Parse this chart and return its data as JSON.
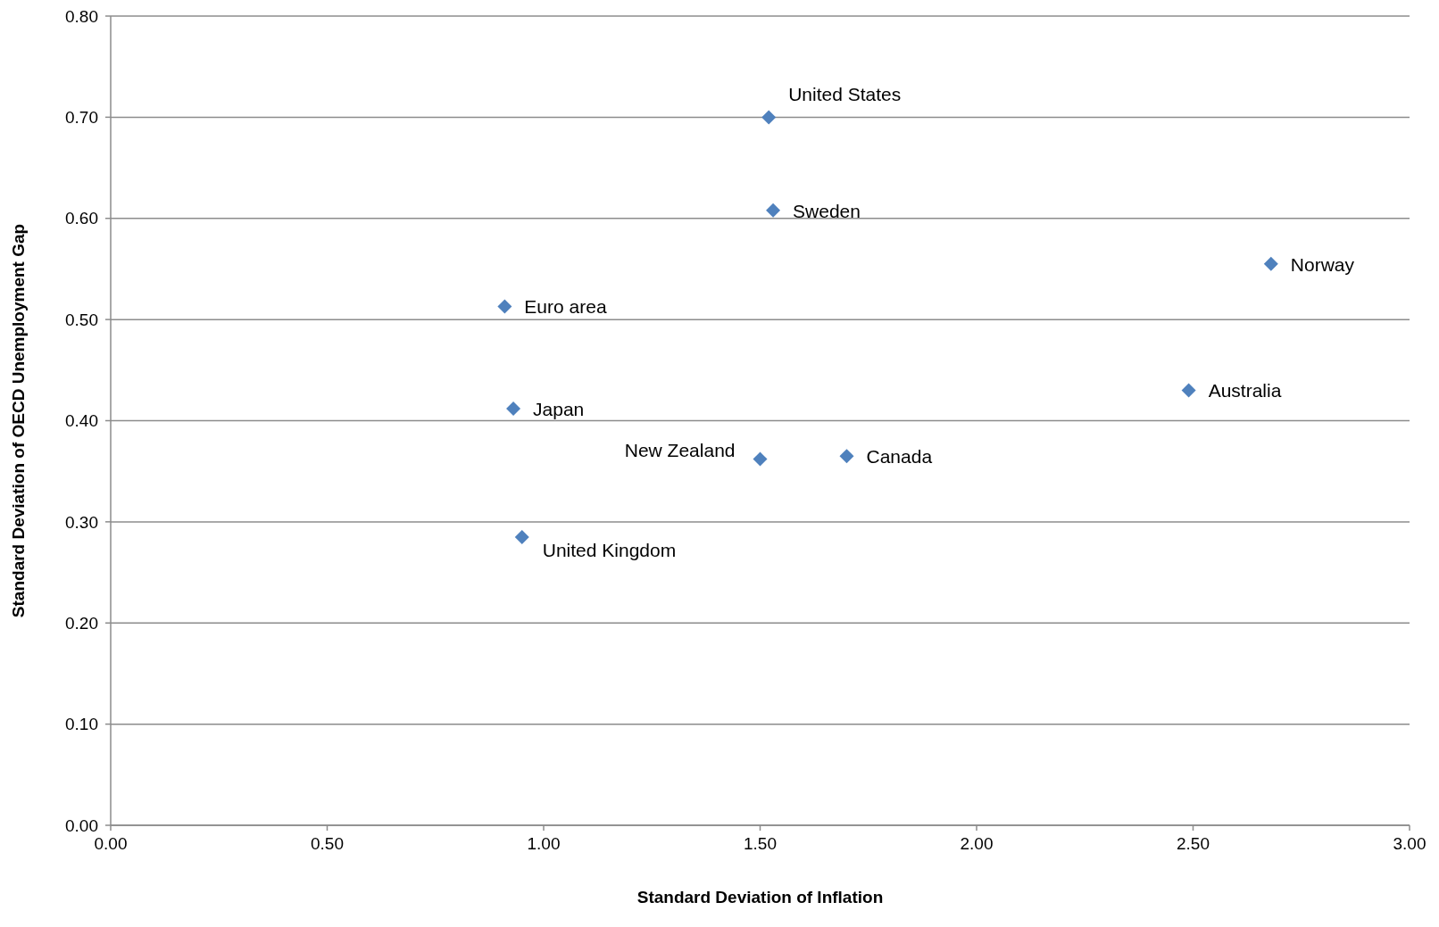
{
  "chart_data": {
    "type": "scatter",
    "xlabel": "Standard Deviation of Inflation",
    "ylabel": "Standard Deviation of OECD Unemployment Gap",
    "series": [
      {
        "color": "#4f81bd",
        "x": [
          1.52,
          1.53,
          2.68,
          0.91,
          2.49,
          0.93,
          1.5,
          1.7,
          0.95
        ],
        "values": [
          0.7,
          0.608,
          0.555,
          0.513,
          0.43,
          0.412,
          0.362,
          0.365,
          0.285
        ]
      }
    ],
    "annotations": [
      {
        "text": "United States",
        "x": 1.52,
        "y": 0.7
      },
      {
        "text": "Sweden",
        "x": 1.53,
        "y": 0.608
      },
      {
        "text": "Norway",
        "x": 2.68,
        "y": 0.555
      },
      {
        "text": "Euro area",
        "x": 0.91,
        "y": 0.513
      },
      {
        "text": "Australia",
        "x": 2.49,
        "y": 0.43
      },
      {
        "text": "Japan",
        "x": 0.93,
        "y": 0.412
      },
      {
        "text": "New Zealand",
        "x": 1.5,
        "y": 0.362
      },
      {
        "text": "Canada",
        "x": 1.7,
        "y": 0.365
      },
      {
        "text": "United Kingdom",
        "x": 0.95,
        "y": 0.285
      }
    ],
    "xlim": [
      0,
      3
    ],
    "xticks": [
      {
        "value": 0,
        "label": "0.00"
      },
      {
        "value": 0.5,
        "label": "0.50"
      },
      {
        "value": 1,
        "label": "1.00"
      },
      {
        "value": 1.5,
        "label": "1.50"
      },
      {
        "value": 2,
        "label": "2.00"
      },
      {
        "value": 2.5,
        "label": "2.50"
      },
      {
        "value": 3,
        "label": "3.00"
      }
    ],
    "ylim": [
      0,
      0.8
    ],
    "yticks": [
      {
        "value": 0,
        "label": "0.00"
      },
      {
        "value": 0.1,
        "label": "0.10"
      },
      {
        "value": 0.2,
        "label": "0.20"
      },
      {
        "value": 0.3,
        "label": "0.30"
      },
      {
        "value": 0.4,
        "label": "0.40"
      },
      {
        "value": 0.5,
        "label": "0.50"
      },
      {
        "value": 0.6,
        "label": "0.60"
      },
      {
        "value": 0.7,
        "label": "0.70"
      },
      {
        "value": 0.8,
        "label": "0.80"
      }
    ],
    "grid": "y",
    "marker": "diamond"
  }
}
